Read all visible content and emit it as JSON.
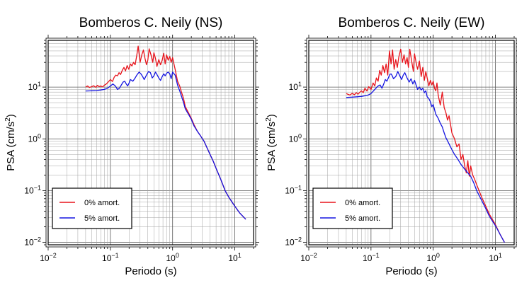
{
  "chart_data": [
    {
      "type": "line",
      "title": "Bomberos C. Neily (NS)",
      "xlabel": "Periodo (s)",
      "ylabel_main": "PSA (cm/s",
      "ylabel_sup": "2",
      "ylabel_end": ")",
      "xscale": "log",
      "yscale": "log",
      "xlim": [
        0.01,
        20
      ],
      "ylim": [
        0.009,
        80
      ],
      "xticks": [
        {
          "value": 0.01,
          "base": "10",
          "exp": "−2"
        },
        {
          "value": 0.1,
          "base": "10",
          "exp": "−1"
        },
        {
          "value": 1,
          "base": "10",
          "exp": "0"
        },
        {
          "value": 10,
          "base": "10",
          "exp": "1"
        }
      ],
      "yticks": [
        {
          "value": 0.01,
          "base": "10",
          "exp": "−2"
        },
        {
          "value": 0.1,
          "base": "10",
          "exp": "−1"
        },
        {
          "value": 1,
          "base": "10",
          "exp": "0"
        },
        {
          "value": 10,
          "base": "10",
          "exp": "1"
        }
      ],
      "grid": true,
      "legend_position": "bottom-left",
      "series": [
        {
          "name": "0% amort.",
          "color": "#e8141c",
          "x": [
            0.04,
            0.043,
            0.046,
            0.05,
            0.054,
            0.058,
            0.062,
            0.066,
            0.07,
            0.075,
            0.08,
            0.086,
            0.092,
            0.1,
            0.108,
            0.115,
            0.122,
            0.13,
            0.138,
            0.146,
            0.155,
            0.165,
            0.175,
            0.186,
            0.198,
            0.21,
            0.222,
            0.235,
            0.25,
            0.265,
            0.28,
            0.3,
            0.32,
            0.34,
            0.36,
            0.38,
            0.4,
            0.42,
            0.45,
            0.48,
            0.5,
            0.53,
            0.56,
            0.6,
            0.64,
            0.68,
            0.72,
            0.76,
            0.8,
            0.85,
            0.9,
            0.95,
            1.0,
            1.1,
            1.2,
            1.3,
            1.4,
            1.5,
            1.6,
            1.8,
            2.0,
            2.2,
            2.5,
            2.8,
            3.2,
            3.6,
            4.0,
            4.5,
            5.0,
            6.0,
            7.0,
            8.0,
            10.0,
            12.0,
            15.0
          ],
          "y": [
            10,
            10.5,
            9.8,
            10.2,
            10.6,
            9.9,
            10.8,
            10.2,
            10.5,
            10.1,
            10.8,
            11.5,
            12.5,
            14.0,
            12.8,
            15.5,
            17.0,
            16.5,
            19.0,
            17.5,
            21.0,
            24.0,
            20.5,
            26.0,
            22.0,
            28.0,
            25.5,
            30.0,
            27.0,
            40.0,
            62.0,
            30.0,
            42.0,
            52.0,
            36.0,
            27.0,
            33.0,
            55.0,
            42.0,
            30.0,
            46.0,
            36.0,
            25.0,
            34.0,
            27.0,
            33.0,
            45.0,
            28.0,
            42.0,
            33.0,
            39.0,
            30.0,
            37.0,
            22.0,
            13.0,
            10.5,
            7.8,
            6.0,
            4.2,
            3.2,
            2.5,
            1.9,
            1.4,
            1.15,
            0.9,
            0.66,
            0.5,
            0.37,
            0.27,
            0.16,
            0.1,
            0.075,
            0.05,
            0.037,
            0.028
          ]
        },
        {
          "name": "5% amort.",
          "color": "#1414e0",
          "x": [
            0.04,
            0.05,
            0.06,
            0.07,
            0.08,
            0.09,
            0.1,
            0.11,
            0.12,
            0.13,
            0.14,
            0.15,
            0.16,
            0.17,
            0.18,
            0.19,
            0.2,
            0.21,
            0.22,
            0.23,
            0.25,
            0.27,
            0.29,
            0.31,
            0.33,
            0.35,
            0.38,
            0.41,
            0.44,
            0.47,
            0.5,
            0.53,
            0.56,
            0.6,
            0.64,
            0.68,
            0.72,
            0.76,
            0.8,
            0.85,
            0.9,
            0.95,
            1.0,
            1.1,
            1.2,
            1.3,
            1.4,
            1.5,
            1.6,
            1.8,
            2.0,
            2.2,
            2.5,
            2.8,
            3.2,
            3.6,
            4.0,
            4.5,
            5.0,
            6.0,
            7.0,
            8.0,
            10.0,
            12.0,
            15.0
          ],
          "y": [
            8.4,
            8.5,
            8.6,
            8.8,
            9.0,
            9.5,
            10.5,
            11.5,
            10.5,
            9.0,
            9.5,
            11.0,
            12.5,
            13.0,
            11.5,
            10.5,
            12.0,
            14.0,
            13.5,
            13.0,
            15.0,
            17.5,
            19.5,
            18.0,
            16.0,
            14.0,
            17.0,
            20.0,
            19.0,
            15.0,
            16.5,
            19.5,
            17.5,
            15.0,
            13.5,
            16.0,
            18.0,
            16.5,
            18.5,
            19.5,
            18.0,
            14.5,
            19.5,
            17.0,
            11.0,
            8.5,
            6.5,
            5.0,
            3.8,
            3.0,
            2.4,
            1.8,
            1.4,
            1.15,
            0.9,
            0.66,
            0.5,
            0.37,
            0.27,
            0.16,
            0.1,
            0.075,
            0.05,
            0.037,
            0.028
          ]
        }
      ]
    },
    {
      "type": "line",
      "title": "Bomberos C. Neily (EW)",
      "xlabel": "Periodo (s)",
      "ylabel_main": "PSA (cm/s",
      "ylabel_sup": "2",
      "ylabel_end": ")",
      "xscale": "log",
      "yscale": "log",
      "xlim": [
        0.01,
        20
      ],
      "ylim": [
        0.009,
        80
      ],
      "xticks": [
        {
          "value": 0.01,
          "base": "10",
          "exp": "−2"
        },
        {
          "value": 0.1,
          "base": "10",
          "exp": "−1"
        },
        {
          "value": 1,
          "base": "10",
          "exp": "0"
        },
        {
          "value": 10,
          "base": "10",
          "exp": "1"
        }
      ],
      "yticks": [
        {
          "value": 0.01,
          "base": "10",
          "exp": "−2"
        },
        {
          "value": 0.1,
          "base": "10",
          "exp": "−1"
        },
        {
          "value": 1,
          "base": "10",
          "exp": "0"
        },
        {
          "value": 10,
          "base": "10",
          "exp": "1"
        }
      ],
      "grid": true,
      "legend_position": "bottom-left",
      "series": [
        {
          "name": "0% amort.",
          "color": "#e8141c",
          "x": [
            0.04,
            0.043,
            0.046,
            0.05,
            0.054,
            0.058,
            0.062,
            0.066,
            0.07,
            0.075,
            0.08,
            0.086,
            0.092,
            0.1,
            0.108,
            0.115,
            0.122,
            0.13,
            0.138,
            0.146,
            0.155,
            0.165,
            0.175,
            0.186,
            0.198,
            0.21,
            0.222,
            0.235,
            0.25,
            0.265,
            0.28,
            0.3,
            0.32,
            0.34,
            0.36,
            0.38,
            0.4,
            0.42,
            0.45,
            0.48,
            0.5,
            0.53,
            0.56,
            0.6,
            0.64,
            0.68,
            0.72,
            0.76,
            0.8,
            0.85,
            0.9,
            0.95,
            1.0,
            1.05,
            1.1,
            1.15,
            1.2,
            1.3,
            1.4,
            1.5,
            1.6,
            1.7,
            1.8,
            2.0,
            2.2,
            2.4,
            2.6,
            2.8,
            3.0,
            3.2,
            3.4,
            3.6,
            3.8,
            4.0,
            4.3,
            4.6,
            5.0,
            6.0,
            7.0,
            8.0,
            10.0,
            12.0,
            14.0
          ],
          "y": [
            7.5,
            7.2,
            7.0,
            7.6,
            7.1,
            7.8,
            7.3,
            7.9,
            8.5,
            7.8,
            9.5,
            8.4,
            10.2,
            9.0,
            12.0,
            10.5,
            15.0,
            13.0,
            21.0,
            17.0,
            26.0,
            19.0,
            28.0,
            17.0,
            50.0,
            28.0,
            52.0,
            22.0,
            34.0,
            24.0,
            38.0,
            54.0,
            30.0,
            42.0,
            28.0,
            37.0,
            24.0,
            54.0,
            32.0,
            20.0,
            44.0,
            30.0,
            22.0,
            32.0,
            16.0,
            24.0,
            13.5,
            20.0,
            15.0,
            10.5,
            13.5,
            11.0,
            13.0,
            9.5,
            8.5,
            12.0,
            7.0,
            4.5,
            8.0,
            4.0,
            3.2,
            2.3,
            2.8,
            1.3,
            1.0,
            0.7,
            0.8,
            0.4,
            0.5,
            0.3,
            0.22,
            0.38,
            0.19,
            0.3,
            0.2,
            0.17,
            0.13,
            0.075,
            0.05,
            0.035,
            0.022,
            0.014,
            0.01
          ]
        },
        {
          "name": "5% amort.",
          "color": "#1414e0",
          "x": [
            0.04,
            0.05,
            0.06,
            0.07,
            0.08,
            0.09,
            0.1,
            0.11,
            0.12,
            0.13,
            0.14,
            0.15,
            0.16,
            0.17,
            0.18,
            0.19,
            0.2,
            0.21,
            0.22,
            0.23,
            0.25,
            0.27,
            0.29,
            0.31,
            0.33,
            0.35,
            0.38,
            0.41,
            0.44,
            0.47,
            0.5,
            0.53,
            0.56,
            0.6,
            0.64,
            0.68,
            0.72,
            0.76,
            0.8,
            0.85,
            0.9,
            0.95,
            1.0,
            1.1,
            1.2,
            1.3,
            1.4,
            1.5,
            1.6,
            1.8,
            2.0,
            2.2,
            2.5,
            2.8,
            3.2,
            3.6,
            4.0,
            4.5,
            5.0,
            6.0,
            7.0,
            8.0,
            10.0,
            12.0,
            14.0
          ],
          "y": [
            6.3,
            6.4,
            6.5,
            6.6,
            6.8,
            7.0,
            7.5,
            8.5,
            9.5,
            10.5,
            11.0,
            9.5,
            11.5,
            14.0,
            13.0,
            15.0,
            17.5,
            18.0,
            16.5,
            14.5,
            16.0,
            20.0,
            16.5,
            14.0,
            17.0,
            19.0,
            15.0,
            12.5,
            14.5,
            11.5,
            13.5,
            11.0,
            9.0,
            10.0,
            8.8,
            9.5,
            7.8,
            8.5,
            6.5,
            6.0,
            5.2,
            4.2,
            4.6,
            3.0,
            2.5,
            2.0,
            1.7,
            1.3,
            1.05,
            0.8,
            0.62,
            0.5,
            0.4,
            0.32,
            0.26,
            0.22,
            0.19,
            0.14,
            0.1,
            0.065,
            0.045,
            0.032,
            0.021,
            0.014,
            0.01
          ]
        }
      ]
    }
  ]
}
